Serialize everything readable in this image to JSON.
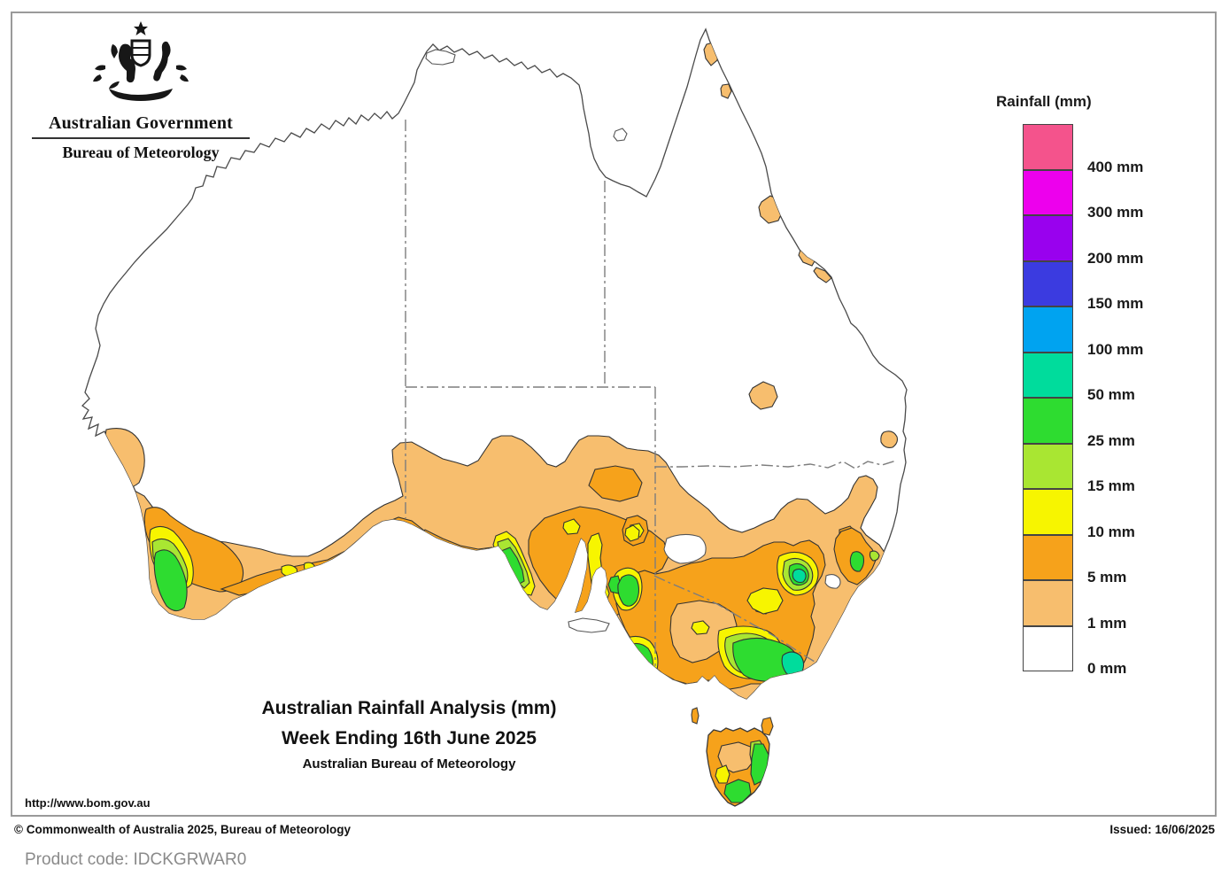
{
  "header": {
    "gov_label": "Australian Government",
    "bureau_label": "Bureau of Meteorology"
  },
  "legend": {
    "title": "Rainfall (mm)",
    "entries": [
      {
        "label": "400 mm",
        "color": "#F4538C"
      },
      {
        "label": "300 mm",
        "color": "#ED00ED"
      },
      {
        "label": "200 mm",
        "color": "#9901EE"
      },
      {
        "label": "150 mm",
        "color": "#3B3BE0"
      },
      {
        "label": "100 mm",
        "color": "#00A3F0"
      },
      {
        "label": "50 mm",
        "color": "#00DC9C"
      },
      {
        "label": "25 mm",
        "color": "#2EDC30"
      },
      {
        "label": "15 mm",
        "color": "#A9E632"
      },
      {
        "label": "10 mm",
        "color": "#F7F500"
      },
      {
        "label": "5 mm",
        "color": "#F6A21B"
      },
      {
        "label": "1 mm",
        "color": "#F7BE6E"
      },
      {
        "label": "0 mm",
        "color": "#FFFFFF"
      }
    ]
  },
  "titles": {
    "line1": "Australian Rainfall Analysis (mm)",
    "line2": "Week Ending 16th June 2025",
    "line3": "Australian Bureau of Meteorology"
  },
  "footer": {
    "url": "http://www.bom.gov.au",
    "copyright": "© Commonwealth of Australia 2025, Bureau of Meteorology",
    "issued": "Issued: 16/06/2025",
    "product_code": "Product code: IDCKGRWAR0"
  },
  "map": {
    "region": "Australia",
    "fill_colors": {
      "rain_0mm": "#FFFFFF",
      "rain_1mm": "#F7BE6E",
      "rain_5mm": "#F6A21B",
      "rain_10mm": "#F7F500",
      "rain_15mm": "#A9E632",
      "rain_25mm": "#2EDC30",
      "rain_50mm": "#00DC9C"
    }
  }
}
